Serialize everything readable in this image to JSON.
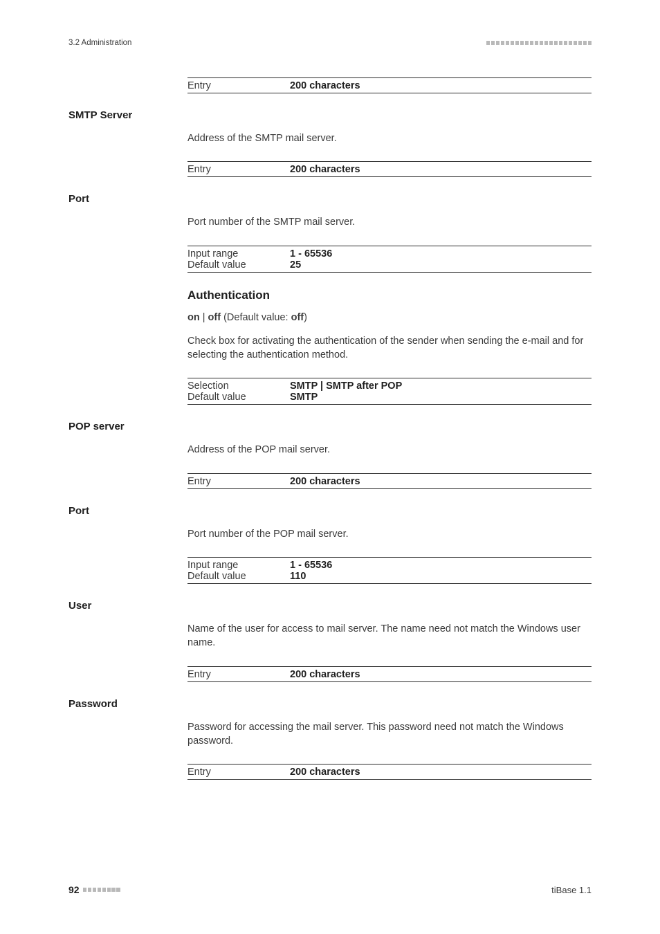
{
  "header": {
    "section": "3.2 Administration",
    "squares_count": 22
  },
  "sections": [
    {
      "label": null,
      "blocks": [
        {
          "type": "entry",
          "rows": [
            {
              "label": "Entry",
              "value": "200 characters"
            }
          ]
        }
      ]
    },
    {
      "label": "SMTP Server",
      "blocks": [
        {
          "type": "text",
          "text": "Address of the SMTP mail server."
        },
        {
          "type": "entry",
          "rows": [
            {
              "label": "Entry",
              "value": "200 characters"
            }
          ]
        }
      ]
    },
    {
      "label": "Port",
      "blocks": [
        {
          "type": "text",
          "text": "Port number of the SMTP mail server."
        },
        {
          "type": "entry",
          "rows": [
            {
              "label": "Input range",
              "value": "1 - 65536"
            },
            {
              "label": "Default value",
              "value": "25"
            }
          ]
        },
        {
          "type": "red-heading",
          "text": "Authentication"
        },
        {
          "type": "bold-toggle",
          "on": "on",
          "sep": " | ",
          "off": "off",
          "rest": " (Default value: ",
          "def": "off",
          "tail": ")"
        },
        {
          "type": "text",
          "text": "Check box for activating the authentication of the sender when sending the e-mail and for selecting the authentication method."
        },
        {
          "type": "entry",
          "rows": [
            {
              "label": "Selection",
              "value": "SMTP | SMTP after POP"
            },
            {
              "label": "Default value",
              "value": "SMTP"
            }
          ]
        }
      ]
    },
    {
      "label": "POP server",
      "blocks": [
        {
          "type": "text",
          "text": "Address of the POP mail server."
        },
        {
          "type": "entry",
          "rows": [
            {
              "label": "Entry",
              "value": "200 characters"
            }
          ]
        }
      ]
    },
    {
      "label": "Port",
      "blocks": [
        {
          "type": "text",
          "text": "Port number of the POP mail server."
        },
        {
          "type": "entry",
          "rows": [
            {
              "label": "Input range",
              "value": "1 - 65536"
            },
            {
              "label": "Default value",
              "value": "110"
            }
          ]
        }
      ]
    },
    {
      "label": "User",
      "blocks": [
        {
          "type": "text",
          "text": "Name of the user for access to mail server. The name need not match the Windows user name."
        },
        {
          "type": "entry",
          "rows": [
            {
              "label": "Entry",
              "value": "200 characters"
            }
          ]
        }
      ]
    },
    {
      "label": "Password",
      "blocks": [
        {
          "type": "text",
          "text": "Password for accessing the mail server. This password need not match the Windows password."
        },
        {
          "type": "entry",
          "rows": [
            {
              "label": "Entry",
              "value": "200 characters"
            }
          ]
        }
      ]
    }
  ],
  "footer": {
    "page": "92",
    "squares_count": 8,
    "product": "tiBase 1.1"
  }
}
